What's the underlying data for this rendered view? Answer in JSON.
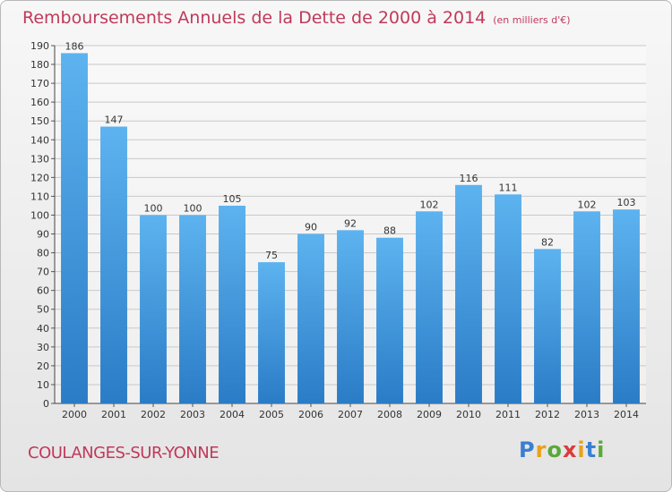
{
  "header": {
    "title": "Remboursements Annuels de la Dette de 2000 à 2014",
    "subtitle": "(en milliers d'€)"
  },
  "footer": {
    "city": "COULANGES-SUR-YONNE",
    "logo": "Proxiti"
  },
  "colors": {
    "bar_top": "#5db3ef",
    "bar_bottom": "#2a7cc6",
    "title": "#c0395a"
  },
  "chart_data": {
    "type": "bar",
    "title": "Remboursements Annuels de la Dette de 2000 à 2014",
    "ylabel": "en milliers d'€",
    "xlabel": "",
    "categories": [
      "2000",
      "2001",
      "2002",
      "2003",
      "2004",
      "2005",
      "2006",
      "2007",
      "2008",
      "2009",
      "2010",
      "2011",
      "2012",
      "2013",
      "2014"
    ],
    "values": [
      186,
      147,
      100,
      100,
      105,
      75,
      90,
      92,
      88,
      102,
      116,
      111,
      82,
      102,
      103
    ],
    "ylim": [
      0,
      190
    ],
    "yticks": [
      0,
      10,
      20,
      30,
      40,
      50,
      60,
      70,
      80,
      90,
      100,
      110,
      120,
      130,
      140,
      150,
      160,
      170,
      180,
      190
    ],
    "grid": true
  }
}
